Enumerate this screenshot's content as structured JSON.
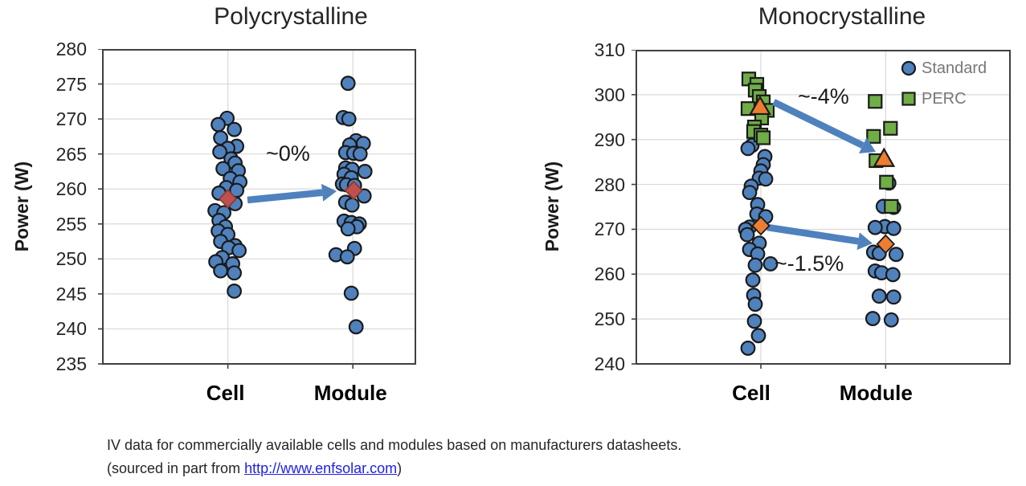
{
  "page": {
    "background": "#FFFFFF"
  },
  "palette": {
    "standard_blue": "#4F81BD",
    "perc_green": "#70AD47",
    "average_orange": "#ED7D31",
    "average_red": "#C0504D",
    "arrow_blue": "#4F81BD",
    "marker_outline": "#1A1A1A",
    "gridline": "#D9D9D9",
    "plot_border": "#404040",
    "legend_text": "#777777",
    "link_blue": "#1F1FE8"
  },
  "caption": {
    "line1": "IV data for commercially available cells and modules based on manufacturers datasheets.",
    "line2_prefix": "(sourced in part from  ",
    "line2_link": "http://www.enfsolar.com",
    "line2_suffix": ")"
  },
  "chart_data": [
    {
      "type": "scatter",
      "title": "Polycrystalline",
      "ylabel": "Power (W)",
      "ylim": [
        235,
        280
      ],
      "yticks": [
        235,
        240,
        245,
        250,
        255,
        260,
        265,
        270,
        275,
        280
      ],
      "categories": [
        "Cell",
        "Module"
      ],
      "grid": true,
      "legend_position": "none",
      "point_format": "[power_W, x_jitter_px]",
      "series": [
        {
          "name": "Cell",
          "category": "Cell",
          "marker": "circle",
          "color": "#4F81BD",
          "points": [
            [
              270.1,
              -1
            ],
            [
              269.2,
              -12
            ],
            [
              268.5,
              8
            ],
            [
              267.3,
              -9
            ],
            [
              266.1,
              11
            ],
            [
              265.8,
              0
            ],
            [
              265.3,
              -10
            ],
            [
              264.3,
              4
            ],
            [
              263.7,
              9
            ],
            [
              262.9,
              -6
            ],
            [
              262.6,
              13
            ],
            [
              261.5,
              3
            ],
            [
              261.0,
              15
            ],
            [
              260.2,
              -2
            ],
            [
              259.8,
              11
            ],
            [
              259.4,
              -11
            ],
            [
              257.9,
              9
            ],
            [
              256.9,
              -16
            ],
            [
              256.6,
              -5
            ],
            [
              255.5,
              -11
            ],
            [
              254.6,
              -3
            ],
            [
              254.0,
              -12
            ],
            [
              253.5,
              0
            ],
            [
              252.5,
              -9
            ],
            [
              251.9,
              9
            ],
            [
              251.6,
              1
            ],
            [
              251.2,
              14
            ],
            [
              250.2,
              -7
            ],
            [
              249.6,
              -15
            ],
            [
              249.3,
              6
            ],
            [
              248.3,
              -9
            ],
            [
              248.0,
              8
            ],
            [
              245.4,
              8
            ]
          ]
        },
        {
          "name": "Module",
          "category": "Module",
          "marker": "circle",
          "color": "#4F81BD",
          "points": [
            [
              275.1,
              -6
            ],
            [
              270.2,
              -12
            ],
            [
              270.0,
              -5
            ],
            [
              266.9,
              4
            ],
            [
              266.5,
              13
            ],
            [
              266.3,
              -4
            ],
            [
              265.2,
              -9
            ],
            [
              265.1,
              1
            ],
            [
              265.0,
              9
            ],
            [
              263.0,
              -9
            ],
            [
              262.8,
              -1
            ],
            [
              262.5,
              15
            ],
            [
              262.1,
              -11
            ],
            [
              261.6,
              -2
            ],
            [
              260.7,
              -13
            ],
            [
              260.6,
              -8
            ],
            [
              260.5,
              2
            ],
            [
              259.0,
              14
            ],
            [
              258.1,
              -9
            ],
            [
              257.7,
              -1
            ],
            [
              255.4,
              -11
            ],
            [
              255.2,
              -2
            ],
            [
              255.0,
              8
            ],
            [
              254.6,
              5
            ],
            [
              254.3,
              -6
            ],
            [
              251.5,
              2
            ],
            [
              250.6,
              -21
            ],
            [
              250.3,
              -7
            ],
            [
              245.1,
              -2
            ],
            [
              240.3,
              4
            ]
          ]
        },
        {
          "name": "Cell average",
          "category": "Cell",
          "marker": "diamond",
          "color": "#C0504D",
          "average": true,
          "points": [
            [
              258.6,
              0
            ]
          ]
        },
        {
          "name": "Module average",
          "category": "Module",
          "marker": "diamond",
          "color": "#C0504D",
          "average": true,
          "points": [
            [
              259.8,
              1
            ]
          ]
        }
      ],
      "annotations": [
        {
          "text": "~0%",
          "meaning": "approximate cell-to-module power change"
        }
      ],
      "arrows": [
        {
          "from": "Cell average",
          "to": "Module average",
          "color": "#4F81BD"
        }
      ]
    },
    {
      "type": "scatter",
      "title": "Monocrystalline",
      "ylabel": "Power (W)",
      "ylim": [
        240,
        310
      ],
      "yticks": [
        240,
        250,
        260,
        270,
        280,
        290,
        300,
        310
      ],
      "categories": [
        "Cell",
        "Module"
      ],
      "grid": true,
      "legend": {
        "position": "top-right",
        "items": [
          {
            "label": "Standard",
            "marker": "circle",
            "color": "#4F81BD"
          },
          {
            "label": "PERC",
            "marker": "square",
            "color": "#70AD47"
          }
        ]
      },
      "point_format": "[power_W, x_jitter_px]",
      "series": [
        {
          "name": "Standard",
          "category": "Cell",
          "marker": "circle",
          "color": "#4F81BD",
          "points": [
            [
              288.7,
              -11
            ],
            [
              288.0,
              -16
            ],
            [
              286.2,
              5
            ],
            [
              284.4,
              3
            ],
            [
              283.0,
              0
            ],
            [
              281.4,
              -2
            ],
            [
              281.2,
              6
            ],
            [
              279.6,
              -12
            ],
            [
              278.2,
              -14
            ],
            [
              275.5,
              -4
            ],
            [
              273.4,
              -5
            ],
            [
              272.8,
              6
            ],
            [
              270.5,
              -14
            ],
            [
              270.0,
              -19
            ],
            [
              268.8,
              -17
            ],
            [
              266.9,
              -2
            ],
            [
              265.5,
              -14
            ],
            [
              264.5,
              -4
            ],
            [
              262.3,
              12
            ],
            [
              262.0,
              -7
            ],
            [
              258.7,
              -10
            ],
            [
              255.3,
              -9
            ],
            [
              253.3,
              -7
            ],
            [
              249.5,
              -8
            ],
            [
              246.3,
              -3
            ],
            [
              243.5,
              -16
            ]
          ]
        },
        {
          "name": "Standard",
          "category": "Module",
          "marker": "circle",
          "color": "#4F81BD",
          "points": [
            [
              280.3,
              4
            ],
            [
              275.1,
              -3
            ],
            [
              274.9,
              10
            ],
            [
              270.6,
              -1
            ],
            [
              270.4,
              -13
            ],
            [
              270.2,
              10
            ],
            [
              264.9,
              -15
            ],
            [
              264.6,
              -8
            ],
            [
              264.4,
              13
            ],
            [
              260.7,
              -13
            ],
            [
              260.3,
              -5
            ],
            [
              259.9,
              9
            ],
            [
              255.1,
              -8
            ],
            [
              254.9,
              10
            ],
            [
              250.1,
              -16
            ],
            [
              249.8,
              7
            ]
          ]
        },
        {
          "name": "PERC",
          "category": "Cell",
          "marker": "square",
          "color": "#70AD47",
          "points": [
            [
              303.5,
              -15
            ],
            [
              302.3,
              -5
            ],
            [
              301.0,
              -7
            ],
            [
              299.6,
              -2
            ],
            [
              298.4,
              3
            ],
            [
              296.9,
              -16
            ],
            [
              296.5,
              8
            ],
            [
              294.8,
              1
            ],
            [
              292.8,
              -8
            ],
            [
              291.8,
              -9
            ],
            [
              291.0,
              0
            ],
            [
              290.4,
              3
            ]
          ]
        },
        {
          "name": "PERC",
          "category": "Module",
          "marker": "square",
          "color": "#70AD47",
          "points": [
            [
              298.5,
              -13
            ],
            [
              292.5,
              6
            ],
            [
              290.7,
              -15
            ],
            [
              285.3,
              -12
            ],
            [
              280.5,
              1
            ],
            [
              275.1,
              7
            ]
          ]
        },
        {
          "name": "PERC average",
          "category": "Cell",
          "marker": "triangle",
          "color": "#ED7D31",
          "average": true,
          "points": [
            [
              297.3,
              -1
            ]
          ]
        },
        {
          "name": "PERC average",
          "category": "Module",
          "marker": "triangle",
          "color": "#ED7D31",
          "average": true,
          "points": [
            [
              285.7,
              -2
            ]
          ]
        },
        {
          "name": "Standard average",
          "category": "Cell",
          "marker": "diamond",
          "color": "#ED7D31",
          "average": true,
          "points": [
            [
              270.8,
              0
            ]
          ]
        },
        {
          "name": "Standard average",
          "category": "Module",
          "marker": "diamond",
          "color": "#ED7D31",
          "average": true,
          "points": [
            [
              266.7,
              0
            ]
          ]
        }
      ],
      "annotations": [
        {
          "text": "~-4%",
          "meaning": "approximate PERC cell-to-module power change"
        },
        {
          "text": "~-1.5%",
          "meaning": "approximate standard cell-to-module power change"
        }
      ],
      "arrows": [
        {
          "from": "PERC average Cell",
          "to": "PERC average Module",
          "color": "#4F81BD"
        },
        {
          "from": "Standard average Cell",
          "to": "Standard average Module",
          "color": "#4F81BD"
        }
      ]
    }
  ]
}
